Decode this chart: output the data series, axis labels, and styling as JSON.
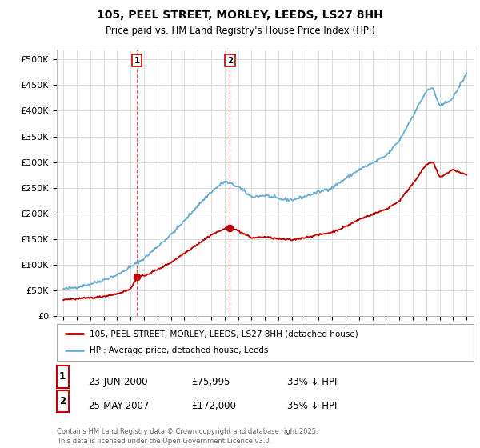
{
  "title_line1": "105, PEEL STREET, MORLEY, LEEDS, LS27 8HH",
  "title_line2": "Price paid vs. HM Land Registry's House Price Index (HPI)",
  "ylim": [
    0,
    520000
  ],
  "yticks": [
    0,
    50000,
    100000,
    150000,
    200000,
    250000,
    300000,
    350000,
    400000,
    450000,
    500000
  ],
  "ytick_labels": [
    "£0",
    "£50K",
    "£100K",
    "£150K",
    "£200K",
    "£250K",
    "£300K",
    "£350K",
    "£400K",
    "£450K",
    "£500K"
  ],
  "hpi_color": "#6aaed6",
  "price_color": "#c00000",
  "marker1_year": 2000.47,
  "marker1_price": 75995,
  "marker2_year": 2007.39,
  "marker2_price": 172000,
  "legend_line1": "105, PEEL STREET, MORLEY, LEEDS, LS27 8HH (detached house)",
  "legend_line2": "HPI: Average price, detached house, Leeds",
  "annotation1_date": "23-JUN-2000",
  "annotation1_price": "£75,995",
  "annotation1_hpi": "33% ↓ HPI",
  "annotation2_date": "25-MAY-2007",
  "annotation2_price": "£172,000",
  "annotation2_hpi": "35% ↓ HPI",
  "footer": "Contains HM Land Registry data © Crown copyright and database right 2025.\nThis data is licensed under the Open Government Licence v3.0.",
  "background_color": "#ffffff",
  "grid_color": "#dddddd"
}
